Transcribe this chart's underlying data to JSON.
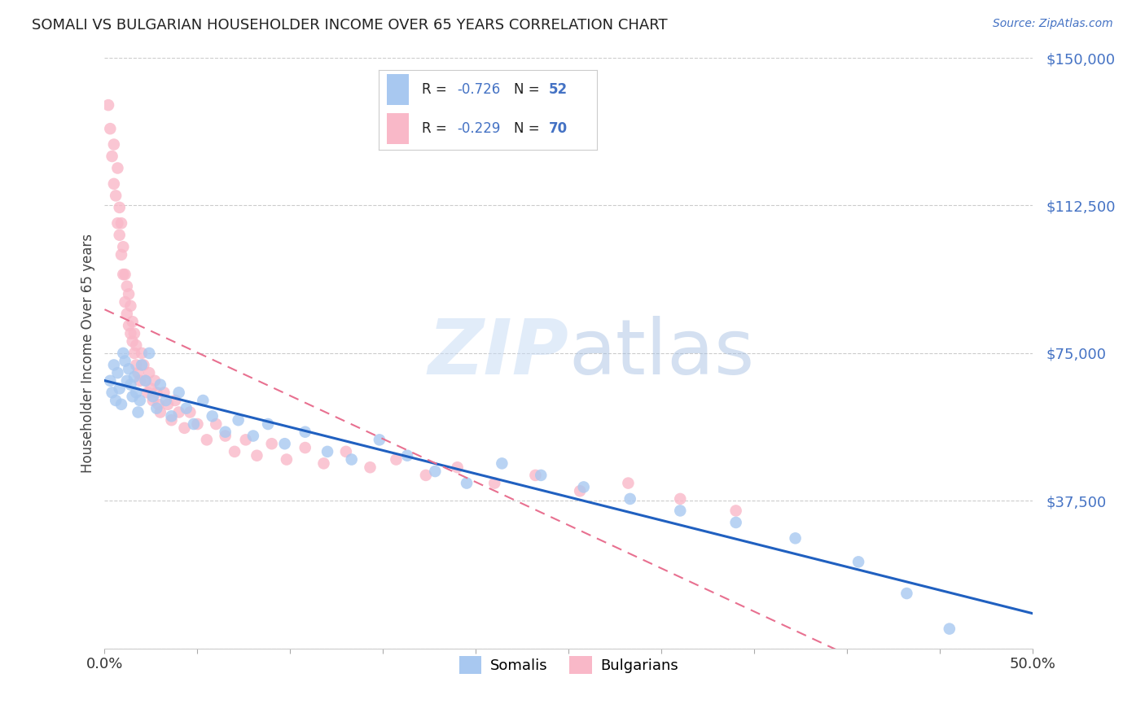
{
  "title": "SOMALI VS BULGARIAN HOUSEHOLDER INCOME OVER 65 YEARS CORRELATION CHART",
  "source": "Source: ZipAtlas.com",
  "ylabel": "Householder Income Over 65 years",
  "watermark_zip": "ZIP",
  "watermark_atlas": "atlas",
  "xlim": [
    0.0,
    0.5
  ],
  "ylim": [
    0,
    150000
  ],
  "yticks": [
    0,
    37500,
    75000,
    112500,
    150000
  ],
  "ytick_labels": [
    "",
    "$37,500",
    "$75,000",
    "$112,500",
    "$150,000"
  ],
  "somali_color": "#a8c8f0",
  "bulgarian_color": "#f9b8c8",
  "somali_line_color": "#2060c0",
  "bulgarian_line_color": "#e87090",
  "legend_somali": "Somalis",
  "legend_bulgarian": "Bulgarians",
  "R_somali": -0.726,
  "N_somali": 52,
  "R_bulgarian": -0.229,
  "N_bulgarian": 70,
  "title_color": "#222222",
  "axis_label_color": "#444444",
  "ytick_color": "#4472c4",
  "xtick_color": "#333333",
  "grid_color": "#cccccc",
  "background_color": "#ffffff",
  "somali_x": [
    0.003,
    0.004,
    0.005,
    0.006,
    0.007,
    0.008,
    0.009,
    0.01,
    0.011,
    0.012,
    0.013,
    0.014,
    0.015,
    0.016,
    0.017,
    0.018,
    0.019,
    0.02,
    0.022,
    0.024,
    0.026,
    0.028,
    0.03,
    0.033,
    0.036,
    0.04,
    0.044,
    0.048,
    0.053,
    0.058,
    0.065,
    0.072,
    0.08,
    0.088,
    0.097,
    0.108,
    0.12,
    0.133,
    0.148,
    0.163,
    0.178,
    0.195,
    0.214,
    0.235,
    0.258,
    0.283,
    0.31,
    0.34,
    0.372,
    0.406,
    0.432,
    0.455
  ],
  "somali_y": [
    68000,
    65000,
    72000,
    63000,
    70000,
    66000,
    62000,
    75000,
    73000,
    68000,
    71000,
    67000,
    64000,
    69000,
    65000,
    60000,
    63000,
    72000,
    68000,
    75000,
    64000,
    61000,
    67000,
    63000,
    59000,
    65000,
    61000,
    57000,
    63000,
    59000,
    55000,
    58000,
    54000,
    57000,
    52000,
    55000,
    50000,
    48000,
    53000,
    49000,
    45000,
    42000,
    47000,
    44000,
    41000,
    38000,
    35000,
    32000,
    28000,
    22000,
    14000,
    5000
  ],
  "bulgarian_x": [
    0.002,
    0.003,
    0.004,
    0.005,
    0.005,
    0.006,
    0.007,
    0.007,
    0.008,
    0.008,
    0.009,
    0.009,
    0.01,
    0.01,
    0.011,
    0.011,
    0.012,
    0.012,
    0.013,
    0.013,
    0.014,
    0.014,
    0.015,
    0.015,
    0.016,
    0.016,
    0.017,
    0.017,
    0.018,
    0.019,
    0.02,
    0.021,
    0.022,
    0.023,
    0.024,
    0.025,
    0.026,
    0.027,
    0.028,
    0.029,
    0.03,
    0.032,
    0.034,
    0.036,
    0.038,
    0.04,
    0.043,
    0.046,
    0.05,
    0.055,
    0.06,
    0.065,
    0.07,
    0.076,
    0.082,
    0.09,
    0.098,
    0.108,
    0.118,
    0.13,
    0.143,
    0.157,
    0.173,
    0.19,
    0.21,
    0.232,
    0.256,
    0.282,
    0.31,
    0.34
  ],
  "bulgarian_y": [
    138000,
    132000,
    125000,
    128000,
    118000,
    115000,
    122000,
    108000,
    112000,
    105000,
    100000,
    108000,
    95000,
    102000,
    88000,
    95000,
    92000,
    85000,
    90000,
    82000,
    80000,
    87000,
    78000,
    83000,
    75000,
    80000,
    72000,
    77000,
    70000,
    68000,
    75000,
    72000,
    68000,
    65000,
    70000,
    66000,
    63000,
    68000,
    65000,
    62000,
    60000,
    65000,
    62000,
    58000,
    63000,
    60000,
    56000,
    60000,
    57000,
    53000,
    57000,
    54000,
    50000,
    53000,
    49000,
    52000,
    48000,
    51000,
    47000,
    50000,
    46000,
    48000,
    44000,
    46000,
    42000,
    44000,
    40000,
    42000,
    38000,
    35000
  ]
}
